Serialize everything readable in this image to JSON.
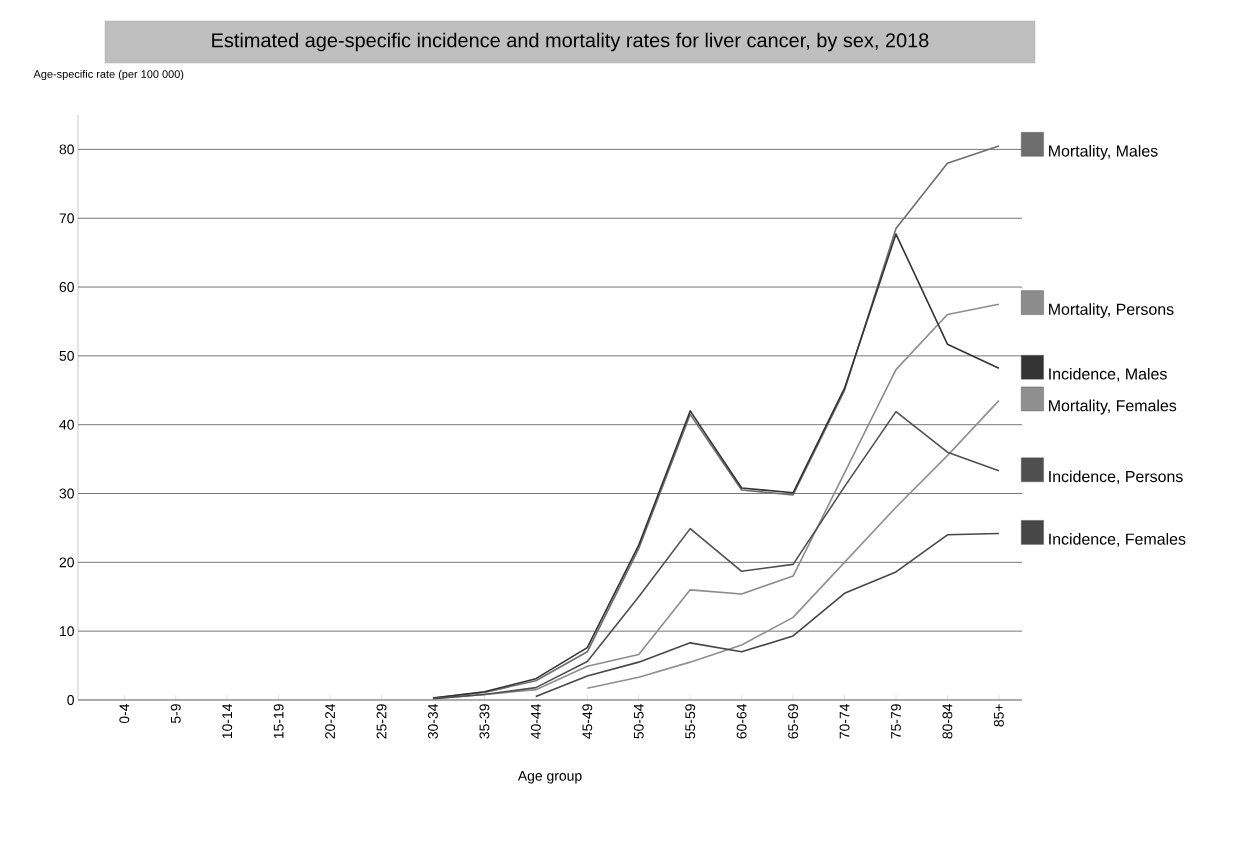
{
  "chart_data": {
    "type": "line",
    "title": "Estimated age-specific incidence and mortality rates for liver cancer, by sex, 2018",
    "xlabel": "Age group",
    "ylabel": "Age-specific rate (per 100 000)",
    "categories": [
      "0-4",
      "5-9",
      "10-14",
      "15-19",
      "20-24",
      "25-29",
      "30-34",
      "35-39",
      "40-44",
      "45-49",
      "50-54",
      "55-59",
      "60-64",
      "65-69",
      "70-74",
      "75-79",
      "80-84",
      "85+"
    ],
    "series": [
      {
        "name": "Mortality, Males",
        "color": "#6e6e6e",
        "values": [
          null,
          null,
          null,
          null,
          null,
          null,
          0.3,
          1.1,
          2.8,
          7,
          22,
          41.5,
          30.5,
          29.8,
          45,
          68.5,
          78,
          80.5
        ]
      },
      {
        "name": "Mortality, Persons",
        "color": "#8c8c8c",
        "values": [
          null,
          null,
          null,
          null,
          null,
          null,
          0.2,
          0.8,
          1.5,
          4.9,
          6.6,
          16,
          15.4,
          18,
          33,
          48,
          56,
          57.5
        ]
      },
      {
        "name": "Incidence, Males",
        "color": "#333333",
        "values": [
          null,
          null,
          null,
          null,
          null,
          null,
          0.3,
          1.2,
          3.1,
          7.6,
          22.5,
          42,
          30.8,
          30.1,
          45.3,
          67.7,
          51.7,
          48.2
        ]
      },
      {
        "name": "Mortality, Females",
        "color": "#8f8f8f",
        "values": [
          null,
          null,
          null,
          null,
          null,
          null,
          null,
          null,
          null,
          1.7,
          3.3,
          5.5,
          8,
          12,
          20,
          28,
          35.5,
          43.5
        ]
      },
      {
        "name": "Incidence, Persons",
        "color": "#4f4f4f",
        "values": [
          null,
          null,
          null,
          null,
          null,
          null,
          0.2,
          0.8,
          1.8,
          5.6,
          15,
          24.9,
          18.7,
          19.7,
          31,
          41.9,
          36,
          33.3
        ]
      },
      {
        "name": "Incidence, Females",
        "color": "#474747",
        "values": [
          null,
          null,
          null,
          null,
          null,
          null,
          null,
          null,
          0.5,
          3.5,
          5.5,
          8.3,
          7,
          9.3,
          15.5,
          18.6,
          24,
          24.2
        ]
      }
    ],
    "ylim": [
      0,
      85
    ],
    "yticks": [
      0,
      10,
      20,
      30,
      40,
      50,
      60,
      70,
      80
    ],
    "grid": "y",
    "legend": "right",
    "marker": "none",
    "line_style": "solid"
  }
}
